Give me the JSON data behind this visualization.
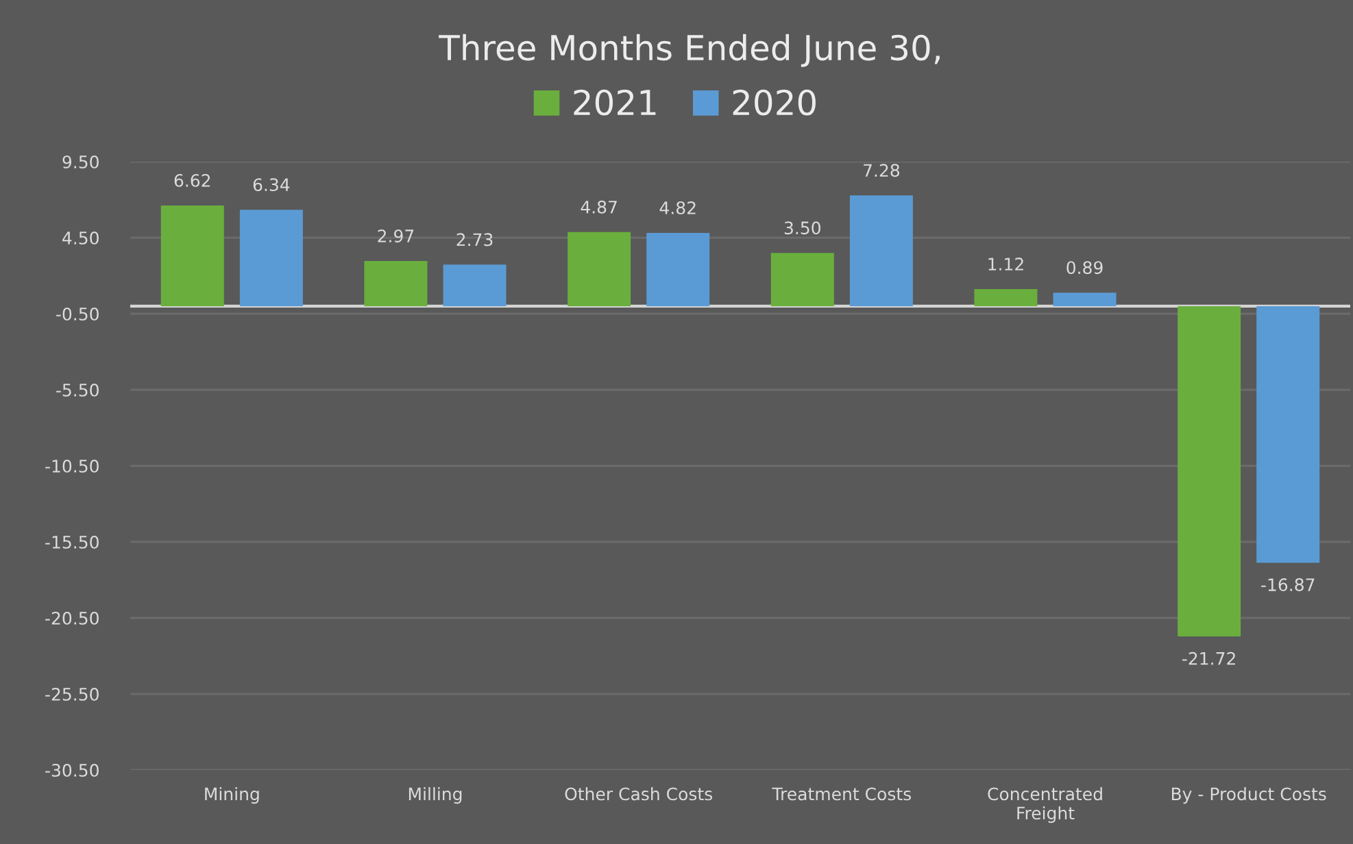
{
  "chart_data": {
    "type": "bar",
    "title": "Three Months Ended June 30,",
    "categories": [
      "Mining",
      "Milling",
      "Other Cash Costs",
      "Treatment Costs",
      "Concentrated\nFreight",
      "By - Product Costs"
    ],
    "series": [
      {
        "name": "2021",
        "color": "#6aaf3d",
        "values": [
          6.62,
          2.97,
          4.87,
          3.5,
          1.12,
          -21.72
        ],
        "value_labels": [
          "6.62",
          "2.97",
          "4.87",
          "3.50",
          "1.12",
          "-21.72"
        ]
      },
      {
        "name": "2020",
        "color": "#5b9bd5",
        "values": [
          6.34,
          2.73,
          4.82,
          7.28,
          0.89,
          -16.87
        ],
        "value_labels": [
          "6.34",
          "2.73",
          "4.82",
          "7.28",
          "0.89",
          "-16.87"
        ]
      }
    ],
    "ylim": [
      -30.5,
      9.5
    ],
    "yticks": [
      {
        "value": 9.5,
        "label": "9.50"
      },
      {
        "value": 4.5,
        "label": "4.50"
      },
      {
        "value": -0.5,
        "label": "-0.50"
      },
      {
        "value": -5.5,
        "label": "-5.50"
      },
      {
        "value": -10.5,
        "label": "-10.50"
      },
      {
        "value": -15.5,
        "label": "-15.50"
      },
      {
        "value": -20.5,
        "label": "-20.50"
      },
      {
        "value": -25.5,
        "label": "-25.50"
      },
      {
        "value": -30.5,
        "label": "-30.50"
      }
    ],
    "grid": "y",
    "legend": "top"
  }
}
